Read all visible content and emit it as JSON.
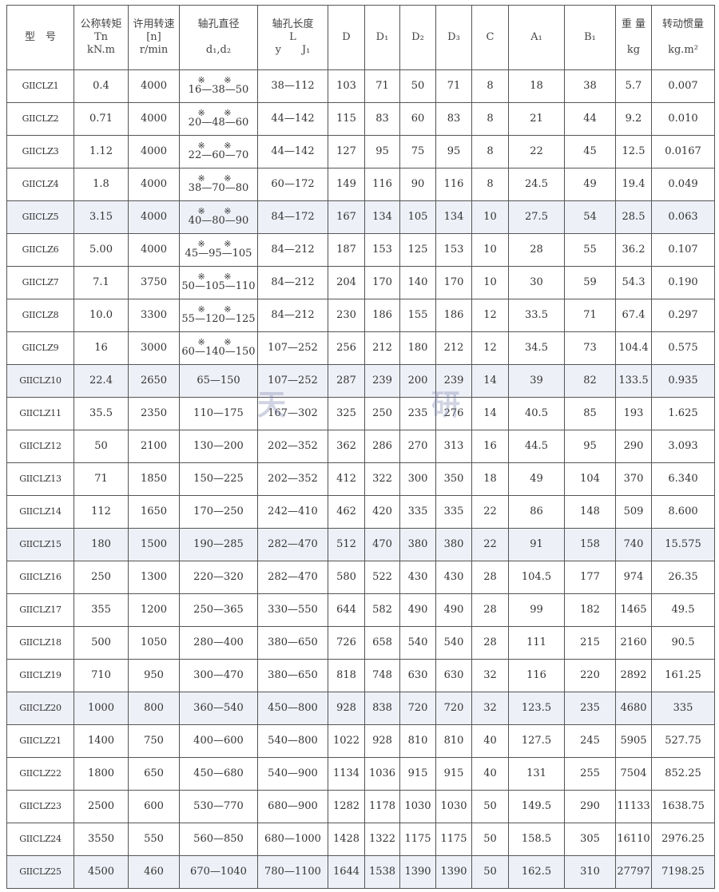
{
  "headers": [
    [
      "型　号"
    ],
    [
      "公称转矩",
      "Tn",
      "kN.m"
    ],
    [
      "许用转速",
      "[n]",
      "r/min"
    ],
    [
      "轴孔直径",
      "",
      "d₁,d₂"
    ],
    [
      "轴孔长度",
      "L",
      "y　　J₁"
    ],
    [
      "D"
    ],
    [
      "D₁"
    ],
    [
      "D₂"
    ],
    [
      "D₃"
    ],
    [
      "C"
    ],
    [
      "A₁"
    ],
    [
      "B₁"
    ],
    [
      "重 量",
      "",
      "kg"
    ],
    [
      "转动惯量",
      "",
      "kg.m²"
    ]
  ],
  "watermark": [
    "天",
    "研"
  ],
  "rows": [
    {
      "model": "GIICLZ1",
      "tn": "0.4",
      "n": "4000",
      "mark": "※ ※",
      "d": "16—38—50",
      "l": "38—112",
      "D": "103",
      "D1": "71",
      "D2": "50",
      "D3": "71",
      "C": "8",
      "A1": "18",
      "B1": "38",
      "kg": "5.7",
      "inertia": "0.007"
    },
    {
      "model": "GIICLZ2",
      "tn": "0.71",
      "n": "4000",
      "mark": "※ ※",
      "d": "20—48—60",
      "l": "44—142",
      "D": "115",
      "D1": "83",
      "D2": "60",
      "D3": "83",
      "C": "8",
      "A1": "21",
      "B1": "44",
      "kg": "9.2",
      "inertia": "0.010"
    },
    {
      "model": "GIICLZ3",
      "tn": "1.12",
      "n": "4000",
      "mark": "※ ※",
      "d": "22—60—70",
      "l": "44—142",
      "D": "127",
      "D1": "95",
      "D2": "75",
      "D3": "95",
      "C": "8",
      "A1": "22",
      "B1": "45",
      "kg": "12.5",
      "inertia": "0.0167"
    },
    {
      "model": "GIICLZ4",
      "tn": "1.8",
      "n": "4000",
      "mark": "※ ※",
      "d": "38—70—80",
      "l": "60—172",
      "D": "149",
      "D1": "116",
      "D2": "90",
      "D3": "116",
      "C": "8",
      "A1": "24.5",
      "B1": "49",
      "kg": "19.4",
      "inertia": "0.049"
    },
    {
      "model": "GIICLZ5",
      "tn": "3.15",
      "n": "4000",
      "mark": "※ ※",
      "d": "40—80—90",
      "l": "84—172",
      "D": "167",
      "D1": "134",
      "D2": "105",
      "D3": "134",
      "C": "10",
      "A1": "27.5",
      "B1": "54",
      "kg": "28.5",
      "inertia": "0.063"
    },
    {
      "model": "GIICLZ6",
      "tn": "5.00",
      "n": "4000",
      "mark": "※ ※",
      "d": "45—95—105",
      "l": "84—212",
      "D": "187",
      "D1": "153",
      "D2": "125",
      "D3": "153",
      "C": "10",
      "A1": "28",
      "B1": "55",
      "kg": "36.2",
      "inertia": "0.107"
    },
    {
      "model": "GIICLZ7",
      "tn": "7.1",
      "n": "3750",
      "mark": "※ ※",
      "d": "50—105—110",
      "l": "84—212",
      "D": "204",
      "D1": "170",
      "D2": "140",
      "D3": "170",
      "C": "10",
      "A1": "30",
      "B1": "59",
      "kg": "54.3",
      "inertia": "0.190"
    },
    {
      "model": "GIICLZ8",
      "tn": "10.0",
      "n": "3300",
      "mark": "※ ※",
      "d": "55—120—125",
      "l": "84—212",
      "D": "230",
      "D1": "186",
      "D2": "155",
      "D3": "186",
      "C": "12",
      "A1": "33.5",
      "B1": "71",
      "kg": "67.4",
      "inertia": "0.297"
    },
    {
      "model": "GIICLZ9",
      "tn": "16",
      "n": "3000",
      "mark": "※ ※",
      "d": "60—140—150",
      "l": "107—252",
      "D": "256",
      "D1": "212",
      "D2": "180",
      "D3": "212",
      "C": "12",
      "A1": "34.5",
      "B1": "73",
      "kg": "104.4",
      "inertia": "0.575"
    },
    {
      "model": "GIICLZ10",
      "tn": "22.4",
      "n": "2650",
      "mark": "",
      "d": "65—150",
      "l": "107—252",
      "D": "287",
      "D1": "239",
      "D2": "200",
      "D3": "239",
      "C": "14",
      "A1": "39",
      "B1": "82",
      "kg": "133.5",
      "inertia": "0.935"
    },
    {
      "model": "GIICLZ11",
      "tn": "35.5",
      "n": "2350",
      "mark": "",
      "d": "110—175",
      "l": "167—302",
      "D": "325",
      "D1": "250",
      "D2": "235",
      "D3": "276",
      "C": "14",
      "A1": "40.5",
      "B1": "85",
      "kg": "193",
      "inertia": "1.625"
    },
    {
      "model": "GIICLZ12",
      "tn": "50",
      "n": "2100",
      "mark": "",
      "d": "130—200",
      "l": "202—352",
      "D": "362",
      "D1": "286",
      "D2": "270",
      "D3": "313",
      "C": "16",
      "A1": "44.5",
      "B1": "95",
      "kg": "290",
      "inertia": "3.093"
    },
    {
      "model": "GIICLZ13",
      "tn": "71",
      "n": "1850",
      "mark": "",
      "d": "150—225",
      "l": "202—352",
      "D": "412",
      "D1": "322",
      "D2": "300",
      "D3": "350",
      "C": "18",
      "A1": "49",
      "B1": "104",
      "kg": "370",
      "inertia": "6.340"
    },
    {
      "model": "GIICLZ14",
      "tn": "112",
      "n": "1650",
      "mark": "",
      "d": "170—250",
      "l": "242—410",
      "D": "462",
      "D1": "420",
      "D2": "335",
      "D3": "335",
      "C": "22",
      "A1": "86",
      "B1": "148",
      "kg": "509",
      "inertia": "8.600"
    },
    {
      "model": "GIICLZ15",
      "tn": "180",
      "n": "1500",
      "mark": "",
      "d": "190—285",
      "l": "282—470",
      "D": "512",
      "D1": "470",
      "D2": "380",
      "D3": "380",
      "C": "22",
      "A1": "91",
      "B1": "158",
      "kg": "740",
      "inertia": "15.575"
    },
    {
      "model": "GIICLZ16",
      "tn": "250",
      "n": "1300",
      "mark": "",
      "d": "220—320",
      "l": "282—470",
      "D": "580",
      "D1": "522",
      "D2": "430",
      "D3": "430",
      "C": "28",
      "A1": "104.5",
      "B1": "177",
      "kg": "974",
      "inertia": "26.35"
    },
    {
      "model": "GIICLZ17",
      "tn": "355",
      "n": "1200",
      "mark": "",
      "d": "250—365",
      "l": "330—550",
      "D": "644",
      "D1": "582",
      "D2": "490",
      "D3": "490",
      "C": "28",
      "A1": "99",
      "B1": "182",
      "kg": "1465",
      "inertia": "49.5"
    },
    {
      "model": "GIICLZ18",
      "tn": "500",
      "n": "1050",
      "mark": "",
      "d": "280—400",
      "l": "380—650",
      "D": "726",
      "D1": "658",
      "D2": "540",
      "D3": "540",
      "C": "28",
      "A1": "111",
      "B1": "215",
      "kg": "2160",
      "inertia": "90.5"
    },
    {
      "model": "GIICLZ19",
      "tn": "710",
      "n": "950",
      "mark": "",
      "d": "300—470",
      "l": "380—650",
      "D": "818",
      "D1": "748",
      "D2": "630",
      "D3": "630",
      "C": "32",
      "A1": "116",
      "B1": "220",
      "kg": "2892",
      "inertia": "161.25"
    },
    {
      "model": "GIICLZ20",
      "tn": "1000",
      "n": "800",
      "mark": "",
      "d": "360—540",
      "l": "450—800",
      "D": "928",
      "D1": "838",
      "D2": "720",
      "D3": "720",
      "C": "32",
      "A1": "123.5",
      "B1": "235",
      "kg": "4680",
      "inertia": "335"
    },
    {
      "model": "GIICLZ21",
      "tn": "1400",
      "n": "750",
      "mark": "",
      "d": "400—600",
      "l": "540—800",
      "D": "1022",
      "D1": "928",
      "D2": "810",
      "D3": "810",
      "C": "40",
      "A1": "127.5",
      "B1": "245",
      "kg": "5905",
      "inertia": "527.75"
    },
    {
      "model": "GIICLZ22",
      "tn": "1800",
      "n": "650",
      "mark": "",
      "d": "450—680",
      "l": "540—900",
      "D": "1134",
      "D1": "1036",
      "D2": "915",
      "D3": "915",
      "C": "40",
      "A1": "131",
      "B1": "255",
      "kg": "7504",
      "inertia": "852.25"
    },
    {
      "model": "GIICLZ23",
      "tn": "2500",
      "n": "600",
      "mark": "",
      "d": "530—770",
      "l": "680—900",
      "D": "1282",
      "D1": "1178",
      "D2": "1030",
      "D3": "1030",
      "C": "50",
      "A1": "149.5",
      "B1": "290",
      "kg": "11133",
      "inertia": "1638.75"
    },
    {
      "model": "GIICLZ24",
      "tn": "3550",
      "n": "550",
      "mark": "",
      "d": "560—850",
      "l": "680—1000",
      "D": "1428",
      "D1": "1322",
      "D2": "1175",
      "D3": "1175",
      "C": "50",
      "A1": "158.5",
      "B1": "305",
      "kg": "16110",
      "inertia": "2976.25"
    },
    {
      "model": "GIICLZ25",
      "tn": "4500",
      "n": "460",
      "mark": "",
      "d": "670—1040",
      "l": "780—1100",
      "D": "1644",
      "D1": "1538",
      "D2": "1390",
      "D3": "1390",
      "C": "50",
      "A1": "162.5",
      "B1": "310",
      "kg": "27797",
      "inertia": "7198.25"
    }
  ]
}
